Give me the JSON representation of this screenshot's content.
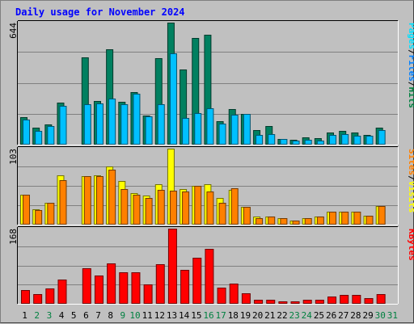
{
  "title": "Daily usage for November 2024",
  "chart_data": {
    "type": "bar",
    "categories": [
      "1",
      "2",
      "3",
      "4",
      "5",
      "6",
      "7",
      "8",
      "9",
      "10",
      "11",
      "12",
      "13",
      "14",
      "15",
      "16",
      "17",
      "18",
      "19",
      "20",
      "21",
      "22",
      "23",
      "24",
      "25",
      "26",
      "27",
      "28",
      "29",
      "30",
      "31"
    ],
    "weekend_days": [
      "2",
      "3",
      "9",
      "10",
      "16",
      "17",
      "23",
      "24",
      "30",
      "31"
    ],
    "panels": [
      {
        "id": "hits",
        "ylabel_max": "644",
        "ymax": 644,
        "side_labels": [
          {
            "text": "Hits",
            "color": "#008040"
          },
          {
            "text": "/",
            "color": "#000000"
          },
          {
            "text": "Files",
            "color": "#0080ff"
          },
          {
            "text": "/",
            "color": "#000000"
          },
          {
            "text": "Pages",
            "color": "#00e0ff"
          }
        ],
        "series": [
          {
            "name": "Hits",
            "color": "#008060",
            "values": [
              147,
              88,
              105,
              221,
              6,
              461,
              230,
              502,
              224,
              279,
              155,
              457,
              644,
              396,
              565,
              582,
              125,
              188,
              163,
              76,
              99,
              30,
              25,
              40,
              35,
              65,
              71,
              65,
              50,
              88,
              0
            ]
          },
          {
            "name": "Files",
            "color": "#00c0ff",
            "values": [
              134,
              73,
              98,
              204,
              0,
              213,
              216,
              242,
              213,
              269,
              151,
              213,
              483,
              140,
              166,
              193,
              112,
              157,
              160,
              53,
              56,
              30,
              20,
              26,
              23,
              52,
              55,
              48,
              46,
              77,
              0
            ]
          }
        ]
      },
      {
        "id": "visits",
        "ylabel_max": "103",
        "ymax": 103,
        "side_labels": [
          {
            "text": "Visits",
            "color": "#ffff00"
          },
          {
            "text": "/",
            "color": "#000000"
          },
          {
            "text": "Sites",
            "color": "#ff8000"
          }
        ],
        "series": [
          {
            "name": "Visits",
            "color": "#ffff00",
            "values": [
              41,
              21,
              30,
              67,
              0,
              66,
              67,
              79,
              59,
              43,
              39,
              55,
              103,
              48,
              53,
              55,
              36,
              47,
              24,
              11,
              11,
              9,
              6,
              9,
              11,
              17,
              18,
              17,
              12,
              25,
              0
            ]
          },
          {
            "name": "Sites",
            "color": "#ff8000",
            "values": [
              41,
              20,
              30,
              60,
              0,
              66,
              66,
              75,
              48,
              41,
              36,
              47,
              46,
              45,
              53,
              45,
              30,
              49,
              24,
              9,
              11,
              9,
              6,
              9,
              11,
              17,
              18,
              17,
              12,
              25,
              0
            ]
          }
        ]
      },
      {
        "id": "kbytes",
        "ylabel_max": "168",
        "ymax": 168,
        "side_labels": [
          {
            "text": "KBytes",
            "color": "#ff0000"
          }
        ],
        "series": [
          {
            "name": "KBytes",
            "color": "#ff0000",
            "values": [
              30,
              22,
              35,
              55,
              0,
              80,
              64,
              90,
              70,
              71,
              43,
              89,
              168,
              76,
              103,
              123,
              37,
              45,
              24,
              9,
              9,
              6,
              6,
              9,
              9,
              17,
              20,
              20,
              13,
              22,
              0
            ]
          }
        ]
      }
    ]
  }
}
